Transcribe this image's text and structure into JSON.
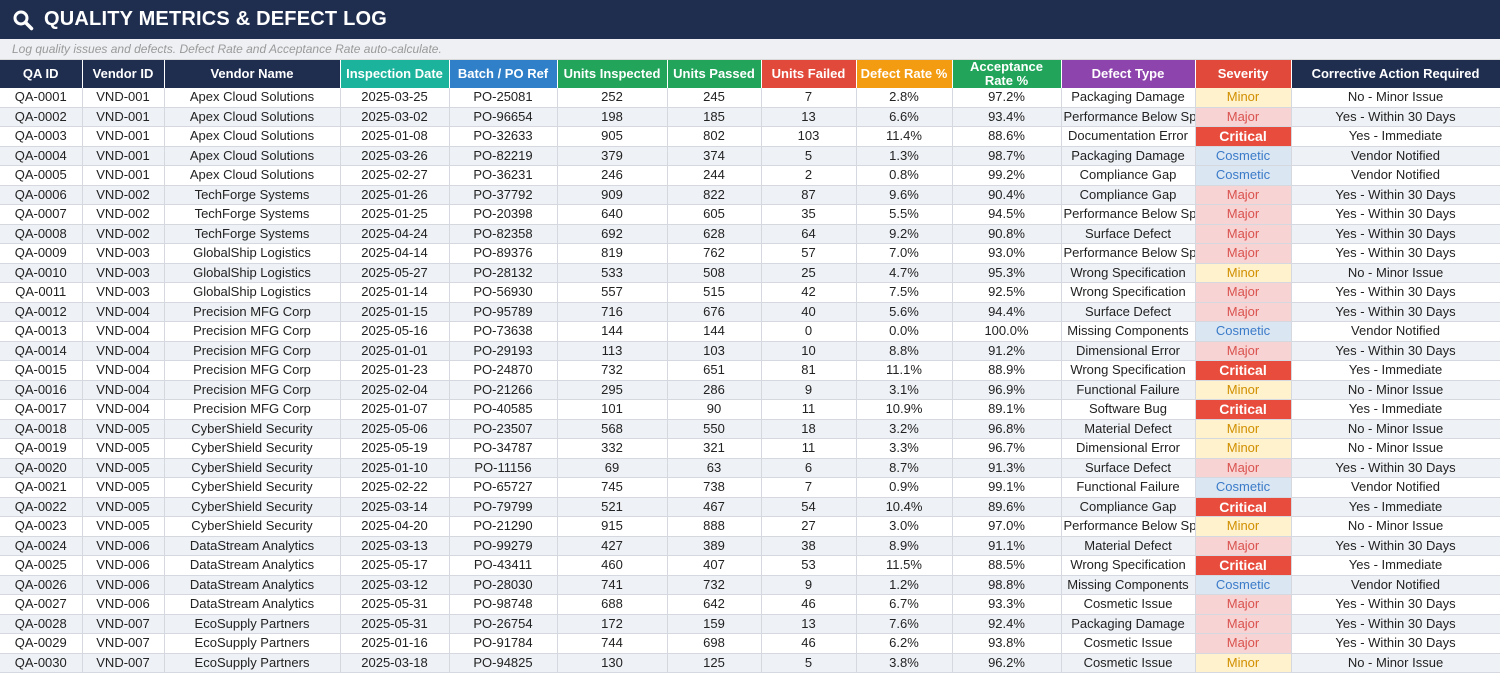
{
  "header": {
    "title": "QUALITY METRICS & DEFECT LOG",
    "subtitle": "Log quality issues and defects. Defect Rate and Acceptance Rate auto-calculate.",
    "icon": "search-icon"
  },
  "colors": {
    "navy": "#1f2d4f",
    "teal": "#1bb39b",
    "blue": "#2f80c8",
    "green": "#22a55a",
    "red": "#e14a3b",
    "orange": "#f39c12",
    "purple": "#8e44ad"
  },
  "columns": [
    {
      "key": "qa_id",
      "label": "QA ID",
      "color": "navy"
    },
    {
      "key": "vendor_id",
      "label": "Vendor ID",
      "color": "navy"
    },
    {
      "key": "vendor_name",
      "label": "Vendor Name",
      "color": "navy"
    },
    {
      "key": "inspection_date",
      "label": "Inspection Date",
      "color": "teal"
    },
    {
      "key": "batch_po",
      "label": "Batch / PO Ref",
      "color": "blue"
    },
    {
      "key": "units_inspected",
      "label": "Units Inspected",
      "color": "green"
    },
    {
      "key": "units_passed",
      "label": "Units Passed",
      "color": "green"
    },
    {
      "key": "units_failed",
      "label": "Units Failed",
      "color": "red"
    },
    {
      "key": "defect_rate",
      "label": "Defect Rate %",
      "color": "orange"
    },
    {
      "key": "acceptance_rate",
      "label": "Acceptance Rate %",
      "color": "green"
    },
    {
      "key": "defect_type",
      "label": "Defect Type",
      "color": "purple"
    },
    {
      "key": "severity",
      "label": "Severity",
      "color": "red"
    },
    {
      "key": "corrective_action",
      "label": "Corrective Action Required",
      "color": "navy"
    }
  ],
  "rows": [
    [
      "QA-0001",
      "VND-001",
      "Apex Cloud Solutions",
      "2025-03-25",
      "PO-25081",
      "252",
      "245",
      "7",
      "2.8%",
      "97.2%",
      "Packaging Damage",
      "Minor",
      "No - Minor Issue"
    ],
    [
      "QA-0002",
      "VND-001",
      "Apex Cloud Solutions",
      "2025-03-02",
      "PO-96654",
      "198",
      "185",
      "13",
      "6.6%",
      "93.4%",
      "Performance Below Spec",
      "Major",
      "Yes - Within 30 Days"
    ],
    [
      "QA-0003",
      "VND-001",
      "Apex Cloud Solutions",
      "2025-01-08",
      "PO-32633",
      "905",
      "802",
      "103",
      "11.4%",
      "88.6%",
      "Documentation Error",
      "Critical",
      "Yes - Immediate"
    ],
    [
      "QA-0004",
      "VND-001",
      "Apex Cloud Solutions",
      "2025-03-26",
      "PO-82219",
      "379",
      "374",
      "5",
      "1.3%",
      "98.7%",
      "Packaging Damage",
      "Cosmetic",
      "Vendor Notified"
    ],
    [
      "QA-0005",
      "VND-001",
      "Apex Cloud Solutions",
      "2025-02-27",
      "PO-36231",
      "246",
      "244",
      "2",
      "0.8%",
      "99.2%",
      "Compliance Gap",
      "Cosmetic",
      "Vendor Notified"
    ],
    [
      "QA-0006",
      "VND-002",
      "TechForge Systems",
      "2025-01-26",
      "PO-37792",
      "909",
      "822",
      "87",
      "9.6%",
      "90.4%",
      "Compliance Gap",
      "Major",
      "Yes - Within 30 Days"
    ],
    [
      "QA-0007",
      "VND-002",
      "TechForge Systems",
      "2025-01-25",
      "PO-20398",
      "640",
      "605",
      "35",
      "5.5%",
      "94.5%",
      "Performance Below Spec",
      "Major",
      "Yes - Within 30 Days"
    ],
    [
      "QA-0008",
      "VND-002",
      "TechForge Systems",
      "2025-04-24",
      "PO-82358",
      "692",
      "628",
      "64",
      "9.2%",
      "90.8%",
      "Surface Defect",
      "Major",
      "Yes - Within 30 Days"
    ],
    [
      "QA-0009",
      "VND-003",
      "GlobalShip Logistics",
      "2025-04-14",
      "PO-89376",
      "819",
      "762",
      "57",
      "7.0%",
      "93.0%",
      "Performance Below Spec",
      "Major",
      "Yes - Within 30 Days"
    ],
    [
      "QA-0010",
      "VND-003",
      "GlobalShip Logistics",
      "2025-05-27",
      "PO-28132",
      "533",
      "508",
      "25",
      "4.7%",
      "95.3%",
      "Wrong Specification",
      "Minor",
      "No - Minor Issue"
    ],
    [
      "QA-0011",
      "VND-003",
      "GlobalShip Logistics",
      "2025-01-14",
      "PO-56930",
      "557",
      "515",
      "42",
      "7.5%",
      "92.5%",
      "Wrong Specification",
      "Major",
      "Yes - Within 30 Days"
    ],
    [
      "QA-0012",
      "VND-004",
      "Precision MFG Corp",
      "2025-01-15",
      "PO-95789",
      "716",
      "676",
      "40",
      "5.6%",
      "94.4%",
      "Surface Defect",
      "Major",
      "Yes - Within 30 Days"
    ],
    [
      "QA-0013",
      "VND-004",
      "Precision MFG Corp",
      "2025-05-16",
      "PO-73638",
      "144",
      "144",
      "0",
      "0.0%",
      "100.0%",
      "Missing Components",
      "Cosmetic",
      "Vendor Notified"
    ],
    [
      "QA-0014",
      "VND-004",
      "Precision MFG Corp",
      "2025-01-01",
      "PO-29193",
      "113",
      "103",
      "10",
      "8.8%",
      "91.2%",
      "Dimensional Error",
      "Major",
      "Yes - Within 30 Days"
    ],
    [
      "QA-0015",
      "VND-004",
      "Precision MFG Corp",
      "2025-01-23",
      "PO-24870",
      "732",
      "651",
      "81",
      "11.1%",
      "88.9%",
      "Wrong Specification",
      "Critical",
      "Yes - Immediate"
    ],
    [
      "QA-0016",
      "VND-004",
      "Precision MFG Corp",
      "2025-02-04",
      "PO-21266",
      "295",
      "286",
      "9",
      "3.1%",
      "96.9%",
      "Functional Failure",
      "Minor",
      "No - Minor Issue"
    ],
    [
      "QA-0017",
      "VND-004",
      "Precision MFG Corp",
      "2025-01-07",
      "PO-40585",
      "101",
      "90",
      "11",
      "10.9%",
      "89.1%",
      "Software Bug",
      "Critical",
      "Yes - Immediate"
    ],
    [
      "QA-0018",
      "VND-005",
      "CyberShield Security",
      "2025-05-06",
      "PO-23507",
      "568",
      "550",
      "18",
      "3.2%",
      "96.8%",
      "Material Defect",
      "Minor",
      "No - Minor Issue"
    ],
    [
      "QA-0019",
      "VND-005",
      "CyberShield Security",
      "2025-05-19",
      "PO-34787",
      "332",
      "321",
      "11",
      "3.3%",
      "96.7%",
      "Dimensional Error",
      "Minor",
      "No - Minor Issue"
    ],
    [
      "QA-0020",
      "VND-005",
      "CyberShield Security",
      "2025-01-10",
      "PO-11156",
      "69",
      "63",
      "6",
      "8.7%",
      "91.3%",
      "Surface Defect",
      "Major",
      "Yes - Within 30 Days"
    ],
    [
      "QA-0021",
      "VND-005",
      "CyberShield Security",
      "2025-02-22",
      "PO-65727",
      "745",
      "738",
      "7",
      "0.9%",
      "99.1%",
      "Functional Failure",
      "Cosmetic",
      "Vendor Notified"
    ],
    [
      "QA-0022",
      "VND-005",
      "CyberShield Security",
      "2025-03-14",
      "PO-79799",
      "521",
      "467",
      "54",
      "10.4%",
      "89.6%",
      "Compliance Gap",
      "Critical",
      "Yes - Immediate"
    ],
    [
      "QA-0023",
      "VND-005",
      "CyberShield Security",
      "2025-04-20",
      "PO-21290",
      "915",
      "888",
      "27",
      "3.0%",
      "97.0%",
      "Performance Below Spec",
      "Minor",
      "No - Minor Issue"
    ],
    [
      "QA-0024",
      "VND-006",
      "DataStream Analytics",
      "2025-03-13",
      "PO-99279",
      "427",
      "389",
      "38",
      "8.9%",
      "91.1%",
      "Material Defect",
      "Major",
      "Yes - Within 30 Days"
    ],
    [
      "QA-0025",
      "VND-006",
      "DataStream Analytics",
      "2025-05-17",
      "PO-43411",
      "460",
      "407",
      "53",
      "11.5%",
      "88.5%",
      "Wrong Specification",
      "Critical",
      "Yes - Immediate"
    ],
    [
      "QA-0026",
      "VND-006",
      "DataStream Analytics",
      "2025-03-12",
      "PO-28030",
      "741",
      "732",
      "9",
      "1.2%",
      "98.8%",
      "Missing Components",
      "Cosmetic",
      "Vendor Notified"
    ],
    [
      "QA-0027",
      "VND-006",
      "DataStream Analytics",
      "2025-05-31",
      "PO-98748",
      "688",
      "642",
      "46",
      "6.7%",
      "93.3%",
      "Cosmetic Issue",
      "Major",
      "Yes - Within 30 Days"
    ],
    [
      "QA-0028",
      "VND-007",
      "EcoSupply Partners",
      "2025-05-31",
      "PO-26754",
      "172",
      "159",
      "13",
      "7.6%",
      "92.4%",
      "Packaging Damage",
      "Major",
      "Yes - Within 30 Days"
    ],
    [
      "QA-0029",
      "VND-007",
      "EcoSupply Partners",
      "2025-01-16",
      "PO-91784",
      "744",
      "698",
      "46",
      "6.2%",
      "93.8%",
      "Cosmetic Issue",
      "Major",
      "Yes - Within 30 Days"
    ],
    [
      "QA-0030",
      "VND-007",
      "EcoSupply Partners",
      "2025-03-18",
      "PO-94825",
      "130",
      "125",
      "5",
      "3.8%",
      "96.2%",
      "Cosmetic Issue",
      "Minor",
      "No - Minor Issue"
    ]
  ]
}
